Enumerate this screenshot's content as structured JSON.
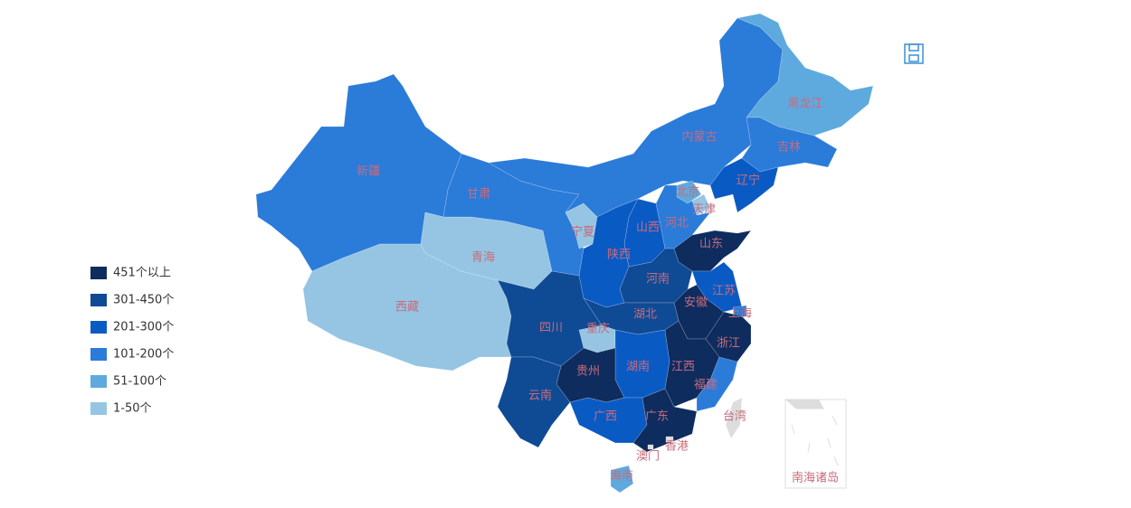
{
  "legend": [
    {
      "label": "451个以上",
      "color": "#0e2c5e"
    },
    {
      "label": "301-450个",
      "color": "#0f4a94"
    },
    {
      "label": "201-300个",
      "color": "#0a5ac4"
    },
    {
      "label": "101-200个",
      "color": "#2b7bd9"
    },
    {
      "label": "51-100个",
      "color": "#5eaade"
    },
    {
      "label": "1-50个",
      "color": "#95c5e3"
    }
  ],
  "regions": [
    {
      "name": "新疆",
      "color": "#2b7bd9"
    },
    {
      "name": "西藏",
      "color": "#95c5e3"
    },
    {
      "name": "青海",
      "color": "#95c5e3"
    },
    {
      "name": "甘肃",
      "color": "#2b7bd9"
    },
    {
      "name": "内蒙古",
      "color": "#2b7bd9"
    },
    {
      "name": "黑龙江",
      "color": "#5eaade"
    },
    {
      "name": "吉林",
      "color": "#2b7bd9"
    },
    {
      "name": "辽宁",
      "color": "#0a5ac4"
    },
    {
      "name": "北京",
      "color": "#5eaade"
    },
    {
      "name": "天津",
      "color": "#95c5e3"
    },
    {
      "name": "河北",
      "color": "#2b7bd9"
    },
    {
      "name": "山西",
      "color": "#0a5ac4"
    },
    {
      "name": "宁夏",
      "color": "#95c5e3"
    },
    {
      "name": "陕西",
      "color": "#0a5ac4"
    },
    {
      "name": "山东",
      "color": "#0e2c5e"
    },
    {
      "name": "河南",
      "color": "#0f4a94"
    },
    {
      "name": "江苏",
      "color": "#0a5ac4"
    },
    {
      "name": "上海",
      "color": "#2b7bd9"
    },
    {
      "name": "安徽",
      "color": "#0e2c5e"
    },
    {
      "name": "湖北",
      "color": "#0f4a94"
    },
    {
      "name": "重庆",
      "color": "#95c5e3"
    },
    {
      "name": "四川",
      "color": "#0f4a94"
    },
    {
      "name": "湖南",
      "color": "#0a5ac4"
    },
    {
      "name": "江西",
      "color": "#0e2c5e"
    },
    {
      "name": "浙江",
      "color": "#0e2c5e"
    },
    {
      "name": "福建",
      "color": "#2b7bd9"
    },
    {
      "name": "贵州",
      "color": "#0e2c5e"
    },
    {
      "name": "云南",
      "color": "#0f4a94"
    },
    {
      "name": "广西",
      "color": "#0a5ac4"
    },
    {
      "name": "广东",
      "color": "#0e2c5e"
    },
    {
      "name": "海南",
      "color": "#5eaade"
    },
    {
      "name": "台湾",
      "color": "#dddddd"
    },
    {
      "name": "香港",
      "color": "#dddddd"
    },
    {
      "name": "澳门",
      "color": "#dddddd"
    }
  ],
  "inset_label": "南海诸岛"
}
